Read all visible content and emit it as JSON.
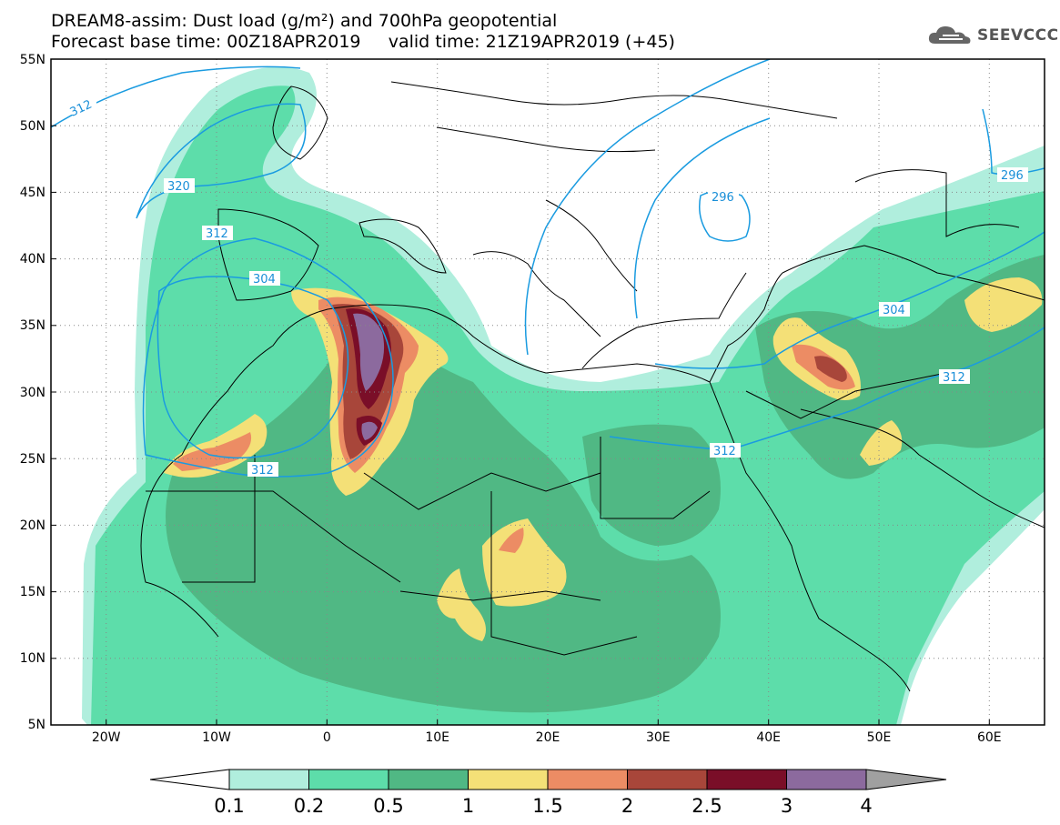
{
  "title": {
    "line1": "DREAM8-assim: Dust load (g/m²) and 700hPa geopotential",
    "line2": "Forecast base time: 00Z18APR2019     valid time: 21Z19APR2019 (+45)"
  },
  "logo": {
    "text": "SEEVCCC",
    "icon": "cloud-icon"
  },
  "map": {
    "lon_range": [
      -25,
      65
    ],
    "lat_range": [
      5,
      55
    ],
    "lat_ticks": [
      "55N",
      "50N",
      "45N",
      "40N",
      "35N",
      "30N",
      "25N",
      "20N",
      "15N",
      "10N",
      "5N"
    ],
    "lon_ticks": [
      "20W",
      "10W",
      "0",
      "10E",
      "20E",
      "30E",
      "40E",
      "50E",
      "60E"
    ],
    "contour_labels": [
      {
        "id": "c312a",
        "text": "312"
      },
      {
        "id": "c320",
        "text": "320"
      },
      {
        "id": "c312b",
        "text": "312"
      },
      {
        "id": "c304a",
        "text": "304"
      },
      {
        "id": "c312c",
        "text": "312"
      },
      {
        "id": "c296a",
        "text": "296"
      },
      {
        "id": "c296b",
        "text": "296"
      },
      {
        "id": "c304b",
        "text": "304"
      },
      {
        "id": "c312d",
        "text": "312"
      },
      {
        "id": "c312e",
        "text": "312"
      }
    ]
  },
  "colorbar": {
    "colors": [
      "#b0eedd",
      "#5dddaa",
      "#50b884",
      "#f4e077",
      "#ec8c64",
      "#a8463a",
      "#7a0e28",
      "#8c6a9e"
    ],
    "under_color": "#ffffff",
    "over_color": "#a0a0a0",
    "labels": [
      "0.1",
      "0.2",
      "0.5",
      "1",
      "1.5",
      "2",
      "2.5",
      "3",
      "4"
    ]
  }
}
